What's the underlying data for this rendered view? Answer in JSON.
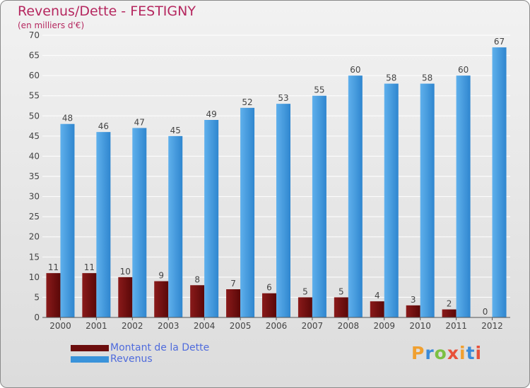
{
  "title": "Revenus/Dette - FESTIGNY",
  "subtitle": "(en milliers d'€)",
  "logo_text": "Proxiti",
  "colors": {
    "debt": "#6b0d0d",
    "revenue": "#3a93da",
    "title": "#b5275f",
    "legend_text": "#4f6bdc"
  },
  "legend": [
    {
      "label": "Montant de la Dette",
      "color": "#6b0d0d"
    },
    {
      "label": "Revenus",
      "color": "#3a93da"
    }
  ],
  "chart_data": {
    "type": "bar",
    "title": "Revenus/Dette - FESTIGNY",
    "subtitle": "(en milliers d'€)",
    "categories": [
      "2000",
      "2001",
      "2002",
      "2003",
      "2004",
      "2005",
      "2006",
      "2007",
      "2008",
      "2009",
      "2010",
      "2011",
      "2012"
    ],
    "series": [
      {
        "name": "Montant de la Dette",
        "values": [
          11,
          11,
          10,
          9,
          8,
          7,
          6,
          5,
          5,
          4,
          3,
          2,
          0
        ]
      },
      {
        "name": "Revenus",
        "values": [
          48,
          46,
          47,
          45,
          49,
          52,
          53,
          55,
          60,
          58,
          58,
          60,
          67
        ]
      }
    ],
    "ylim": [
      0,
      70
    ],
    "yticks": [
      0,
      5,
      10,
      15,
      20,
      25,
      30,
      35,
      40,
      45,
      50,
      55,
      60,
      65,
      70
    ],
    "grid": true,
    "legend_position": "bottom-left"
  }
}
